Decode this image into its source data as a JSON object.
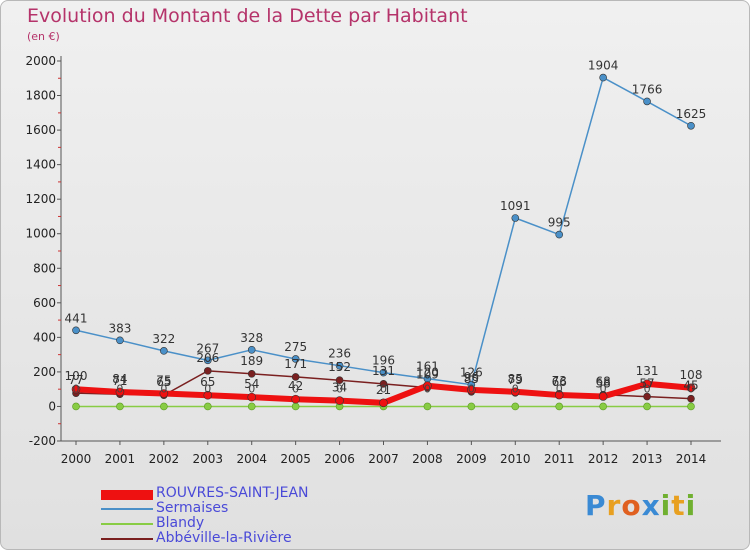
{
  "title": "Evolution du Montant de la Dette par Habitant",
  "unit": "(en €)",
  "logo_text": "Proxiti",
  "chart_data": {
    "type": "line",
    "x": [
      2000,
      2001,
      2002,
      2003,
      2004,
      2005,
      2006,
      2007,
      2008,
      2009,
      2010,
      2011,
      2012,
      2013,
      2014
    ],
    "ylim": [
      -200,
      2000
    ],
    "yticks": [
      -200,
      0,
      200,
      400,
      600,
      800,
      1000,
      1200,
      1400,
      1600,
      1800,
      2000
    ],
    "grid": false,
    "legend_position": "bottom-left",
    "series": [
      {
        "name": "ROUVRES-SAINT-JEAN",
        "color": "#ee1111",
        "values": [
          100,
          84,
          75,
          65,
          54,
          42,
          34,
          21,
          120,
          96,
          85,
          66,
          58,
          131,
          108
        ]
      },
      {
        "name": "Sermaises",
        "color": "#4a90c8",
        "values": [
          441,
          383,
          322,
          267,
          328,
          275,
          236,
          196,
          161,
          126,
          1091,
          995,
          1904,
          1766,
          1625
        ]
      },
      {
        "name": "Blandy",
        "color": "#88cc44",
        "values": [
          0,
          0,
          0,
          0,
          0,
          0,
          0,
          0,
          0,
          0,
          0,
          0,
          0,
          0,
          0
        ]
      },
      {
        "name": "Abbéville-la-Rivière",
        "color": "#7a2020",
        "values": [
          77,
          71,
          65,
          206,
          189,
          171,
          152,
          131,
          109,
          85,
          79,
          73,
          68,
          57,
          45
        ]
      }
    ]
  }
}
